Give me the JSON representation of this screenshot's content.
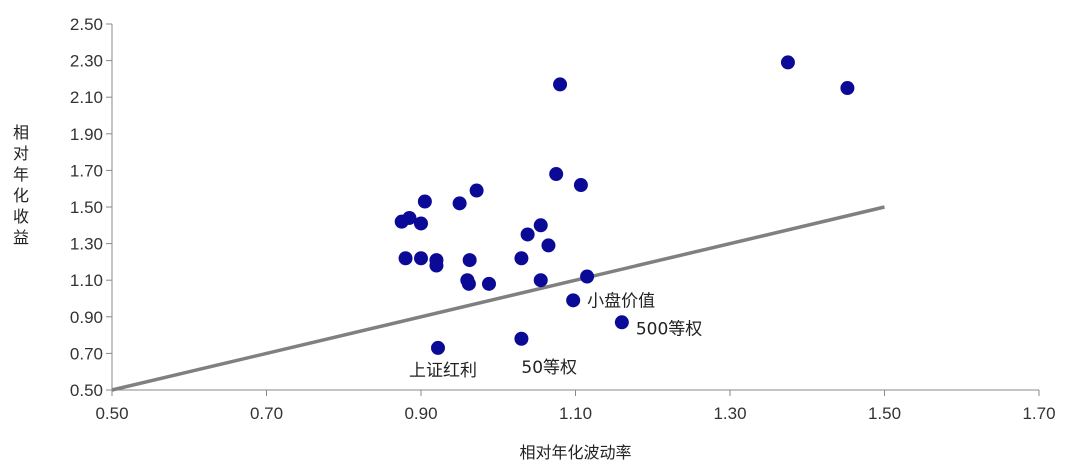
{
  "chart_data": {
    "type": "scatter",
    "xlabel": "相对年化波动率",
    "ylabel": "相对年化收益",
    "xlim": [
      0.5,
      1.7
    ],
    "ylim": [
      0.5,
      2.5
    ],
    "x_ticks": [
      "0.50",
      "0.70",
      "0.90",
      "1.10",
      "1.30",
      "1.50",
      "1.70"
    ],
    "y_ticks": [
      "0.50",
      "0.70",
      "0.90",
      "1.10",
      "1.30",
      "1.50",
      "1.70",
      "1.90",
      "2.10",
      "2.30",
      "2.50"
    ],
    "grid": false,
    "point_color": "#0a0a96",
    "reference_line": {
      "from": [
        0.5,
        0.5
      ],
      "to": [
        1.5,
        1.5
      ],
      "color": "#808080"
    },
    "points": [
      {
        "x": 0.875,
        "y": 1.42
      },
      {
        "x": 0.885,
        "y": 1.44
      },
      {
        "x": 0.9,
        "y": 1.41
      },
      {
        "x": 0.905,
        "y": 1.53
      },
      {
        "x": 0.88,
        "y": 1.22
      },
      {
        "x": 0.9,
        "y": 1.22
      },
      {
        "x": 0.92,
        "y": 1.21
      },
      {
        "x": 0.92,
        "y": 1.18
      },
      {
        "x": 0.95,
        "y": 1.52
      },
      {
        "x": 0.972,
        "y": 1.59
      },
      {
        "x": 0.963,
        "y": 1.21
      },
      {
        "x": 0.96,
        "y": 1.1
      },
      {
        "x": 0.962,
        "y": 1.08
      },
      {
        "x": 0.988,
        "y": 1.08
      },
      {
        "x": 1.03,
        "y": 1.22
      },
      {
        "x": 1.038,
        "y": 1.35
      },
      {
        "x": 1.055,
        "y": 1.4
      },
      {
        "x": 1.065,
        "y": 1.29
      },
      {
        "x": 1.055,
        "y": 1.1
      },
      {
        "x": 1.075,
        "y": 1.68
      },
      {
        "x": 1.08,
        "y": 2.17
      },
      {
        "x": 1.107,
        "y": 1.62
      },
      {
        "x": 1.115,
        "y": 1.12
      },
      {
        "x": 1.375,
        "y": 2.29
      },
      {
        "x": 1.452,
        "y": 2.15
      },
      {
        "x": 1.097,
        "y": 0.99,
        "label": "小盘价值"
      },
      {
        "x": 1.16,
        "y": 0.87,
        "label": "500等权"
      },
      {
        "x": 1.03,
        "y": 0.78,
        "label": "50等权"
      },
      {
        "x": 0.922,
        "y": 0.73,
        "label": "上证红利"
      }
    ]
  }
}
